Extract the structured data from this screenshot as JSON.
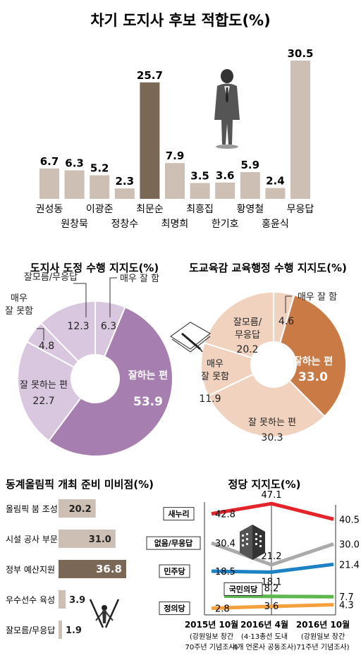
{
  "colors": {
    "tan": "#cdbfb3",
    "brown": "#7a6756",
    "purple_dark": "#a67eb0",
    "purple_light": "#d9c6df",
    "orange_dark": "#c97a45",
    "orange_light": "#f0d2bf",
    "red": "#e3242b",
    "gray": "#aaaaaa",
    "blue": "#1c82c4",
    "green": "#5cb84e",
    "orange": "#f4a03d"
  },
  "chart_data": [
    {
      "type": "bar",
      "title": "차기 도지사 후보 적합도(%)",
      "categories": [
        "권성동",
        "원창묵",
        "이광준",
        "정창수",
        "최문순",
        "최명희",
        "최흥집",
        "한기호",
        "황영철",
        "홍윤식",
        "무응답"
      ],
      "values": [
        6.7,
        6.3,
        5.2,
        2.3,
        25.7,
        7.9,
        3.5,
        3.6,
        5.9,
        2.4,
        30.5
      ],
      "value_labels": [
        "6.7",
        "6.3",
        "5.2",
        "2.3",
        "25.7",
        "7.9",
        "3.5",
        "3.6",
        "5.9",
        "2.4",
        "30.5"
      ],
      "highlight": "최문순",
      "ylim": [
        0,
        32
      ]
    },
    {
      "type": "pie",
      "title": "도지사 도정 수행 지지도(%)",
      "slices": [
        {
          "label": "잘하는 편",
          "value": 53.9,
          "value_label": "53.9"
        },
        {
          "label": "잘 못하는 편",
          "value": 22.7,
          "value_label": "22.7"
        },
        {
          "label": "매우 잘 못함",
          "value": 4.8,
          "value_label": "4.8"
        },
        {
          "label": "잘모름/무응답",
          "value": 12.3,
          "value_label": "12.3"
        },
        {
          "label": "매우 잘 함",
          "value": 6.3,
          "value_label": "6.3"
        }
      ]
    },
    {
      "type": "pie",
      "title": "도교육감 교육행정 수행 지지도(%)",
      "slices": [
        {
          "label": "잘하는 편",
          "value": 33.0,
          "value_label": "33.0"
        },
        {
          "label": "잘 못하는 편",
          "value": 30.3,
          "value_label": "30.3"
        },
        {
          "label": "매우 잘 못함",
          "value": 11.9,
          "value_label": "11.9"
        },
        {
          "label": "잘모름/무응답",
          "value": 20.2,
          "value_label": "20.2"
        },
        {
          "label": "매우 잘 함",
          "value": 4.6,
          "value_label": "4.6"
        }
      ]
    },
    {
      "type": "bar",
      "orientation": "horizontal",
      "title": "동계올림픽 개최 준비 미비점(%)",
      "categories": [
        "올림픽 붐 조성",
        "시설 공사 부문",
        "정부 예산지원",
        "우수선수 육성",
        "잘모름/무응답"
      ],
      "values": [
        20.2,
        31.0,
        36.8,
        3.9,
        1.9
      ],
      "value_labels": [
        "20.2",
        "31.0",
        "36.8",
        "3.9",
        "1.9"
      ],
      "highlight": "정부 예산지원",
      "xlim": [
        0,
        38
      ]
    },
    {
      "type": "line",
      "title": "정당 지지도(%)",
      "x": [
        "2015년 10월",
        "2016년 4월",
        "2016년 10월"
      ],
      "x_notes": [
        "(강원일보 창간\n70주년 기념조사)",
        "(4·13총선 도내\n4개 언론사 공동조사)",
        "(강원일보 창간\n71주년 기념조사)"
      ],
      "ylim": [
        0,
        50
      ],
      "series": [
        {
          "name": "새누리",
          "color": "#e3242b",
          "values": [
            42.8,
            47.1,
            40.5
          ],
          "labels": [
            "42.8",
            "47.1",
            "40.5"
          ]
        },
        {
          "name": "없음/무응답",
          "color": "#aaaaaa",
          "values": [
            30.4,
            21.2,
            30.0
          ],
          "labels": [
            "30.4",
            "21.2",
            "30.0"
          ]
        },
        {
          "name": "민주당",
          "color": "#1c82c4",
          "values": [
            18.5,
            18.1,
            21.4
          ],
          "labels": [
            "18.5",
            "18.1",
            "21.4"
          ]
        },
        {
          "name": "국민의당",
          "color": "#5cb84e",
          "values": [
            null,
            8.2,
            7.7
          ],
          "labels": [
            "",
            "8.2",
            "7.7"
          ]
        },
        {
          "name": "정의당",
          "color": "#f4a03d",
          "values": [
            2.8,
            3.6,
            4.3
          ],
          "labels": [
            "2.8",
            "3.6",
            "4.3"
          ]
        }
      ]
    }
  ]
}
